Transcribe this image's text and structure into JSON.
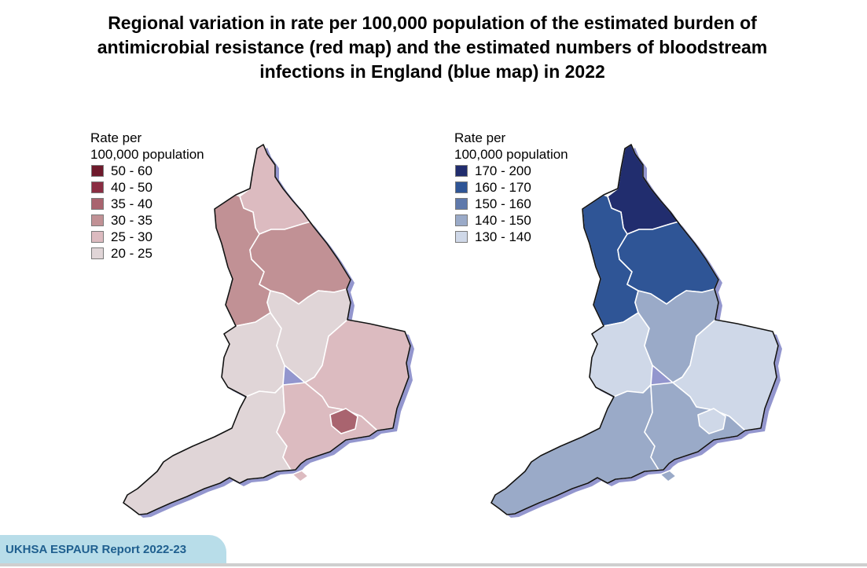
{
  "title_lines": [
    "Regional variation in rate per 100,000 population of the estimated burden of",
    "antimicrobial resistance (red map) and the estimated numbers of bloodstream",
    "infections in England (blue map) in 2022"
  ],
  "red_map": {
    "legend_heading": [
      "Rate per",
      "100,000 population"
    ],
    "legend_items": [
      {
        "label": "50 - 60",
        "color": "#6e1a2c"
      },
      {
        "label": "40 - 50",
        "color": "#8a2d42"
      },
      {
        "label": "35 - 40",
        "color": "#a9646f"
      },
      {
        "label": "30 - 35",
        "color": "#c19195"
      },
      {
        "label": "25 - 30",
        "color": "#dcbbc0"
      },
      {
        "label": "20 - 25",
        "color": "#e0d5d7"
      }
    ],
    "regions": {
      "north_east": "25 - 30",
      "north_west": "30 - 35",
      "yorkshire_humber": "30 - 35",
      "west_midlands": "20 - 25",
      "east_midlands": "20 - 25",
      "east_of_england": "25 - 30",
      "south_west": "20 - 25",
      "south_east": "25 - 30",
      "london": "35 - 40"
    }
  },
  "blue_map": {
    "legend_heading": [
      "Rate per",
      "100,000 population"
    ],
    "legend_items": [
      {
        "label": "170 - 200",
        "color": "#212d6e"
      },
      {
        "label": "160 - 170",
        "color": "#2f5596"
      },
      {
        "label": "150 - 160",
        "color": "#5f79ab"
      },
      {
        "label": "140 - 150",
        "color": "#9aaac8"
      },
      {
        "label": "130 - 140",
        "color": "#cfd8e8"
      }
    ],
    "regions": {
      "north_east": "170 - 200",
      "north_west": "160 - 170",
      "yorkshire_humber": "160 - 170",
      "west_midlands": "130 - 140",
      "east_midlands": "140 - 150",
      "east_of_england": "130 - 140",
      "south_west": "140 - 150",
      "south_east": "140 - 150",
      "london": "130 - 140"
    }
  },
  "footer": {
    "label": "UKHSA ESPAUR Report 2022-23"
  }
}
